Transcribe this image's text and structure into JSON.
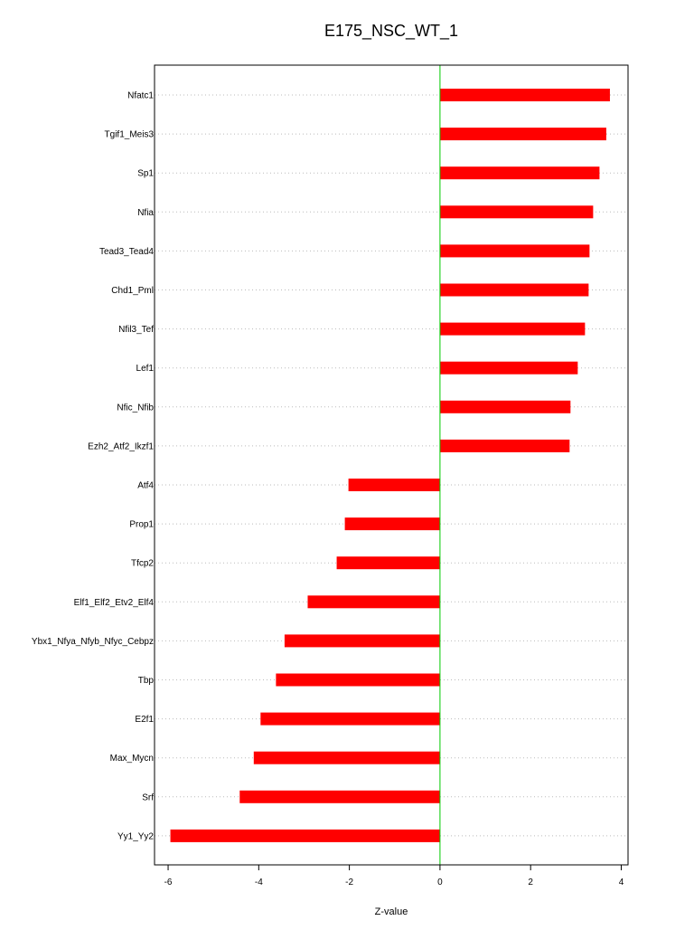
{
  "chart_data": {
    "type": "bar",
    "orientation": "horizontal",
    "title": "E175_NSC_WT_1",
    "xlabel": "Z-value",
    "ylabel": "",
    "xlim": [
      -6.3,
      4.15
    ],
    "xticks": [
      -6,
      -4,
      -2,
      0,
      2,
      4
    ],
    "reference_line": 0,
    "grid": "horizontal dotted",
    "bar_color": "#ff0000",
    "ref_line_color": "#00cc00",
    "categories": [
      "Nfatc1",
      "Tgif1_Meis3",
      "Sp1",
      "Nfia",
      "Tead3_Tead4",
      "Chd1_Pml",
      "Nfil3_Tef",
      "Lef1",
      "Nfic_Nfib",
      "Ezh2_Atf2_Ikzf1",
      "Atf4",
      "Prop1",
      "Tfcp2",
      "Elf1_Elf2_Etv2_Elf4",
      "Ybx1_Nfya_Nfyb_Nfyc_Cebpz",
      "Tbp",
      "E2f1",
      "Max_Mycn",
      "Srf",
      "Yy1_Yy2"
    ],
    "values": [
      3.75,
      3.67,
      3.52,
      3.38,
      3.3,
      3.28,
      3.2,
      3.04,
      2.88,
      2.86,
      -2.02,
      -2.1,
      -2.28,
      -2.92,
      -3.43,
      -3.62,
      -3.96,
      -4.11,
      -4.42,
      -5.95
    ]
  }
}
